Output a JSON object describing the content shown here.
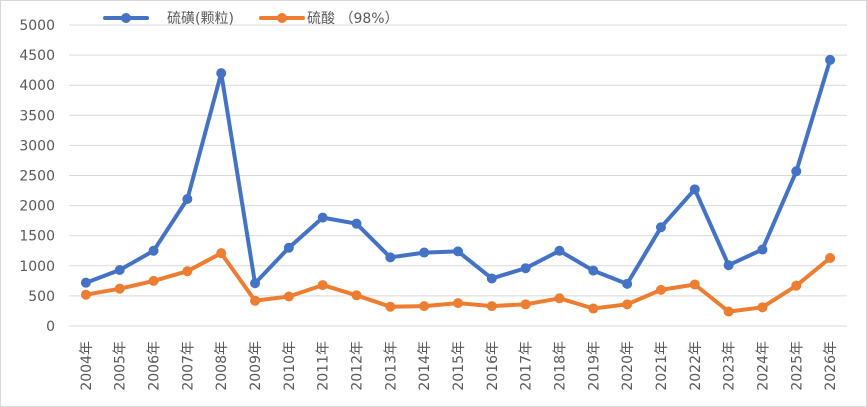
{
  "chart_data": {
    "type": "line",
    "title": "",
    "xlabel": "",
    "ylabel": "",
    "ylim": [
      0,
      5000
    ],
    "yticks": [
      0,
      500,
      1000,
      1500,
      2000,
      2500,
      3000,
      3500,
      4000,
      4500,
      5000
    ],
    "grid": true,
    "legend_position": "top-left",
    "categories": [
      "2004年",
      "2005年",
      "2006年",
      "2007年",
      "2008年",
      "2009年",
      "2010年",
      "2011年",
      "2012年",
      "2013年",
      "2014年",
      "2015年",
      "2016年",
      "2017年",
      "2018年",
      "2019年",
      "2020年",
      "2021年",
      "2022年",
      "2023年",
      "2024年",
      "2025年",
      "2026年"
    ],
    "series": [
      {
        "name": "硫磺(颗粒)",
        "color": "#4472C4",
        "values": [
          720,
          930,
          1250,
          2110,
          4200,
          710,
          1300,
          1800,
          1700,
          1140,
          1220,
          1240,
          790,
          960,
          1250,
          920,
          700,
          1640,
          2270,
          1010,
          1270,
          2570,
          4420
        ]
      },
      {
        "name": "硫酸 （98%）",
        "color": "#ED7D31",
        "values": [
          520,
          620,
          750,
          910,
          1210,
          420,
          490,
          680,
          510,
          320,
          330,
          380,
          330,
          360,
          460,
          290,
          360,
          600,
          690,
          240,
          310,
          670,
          1130
        ]
      }
    ]
  }
}
